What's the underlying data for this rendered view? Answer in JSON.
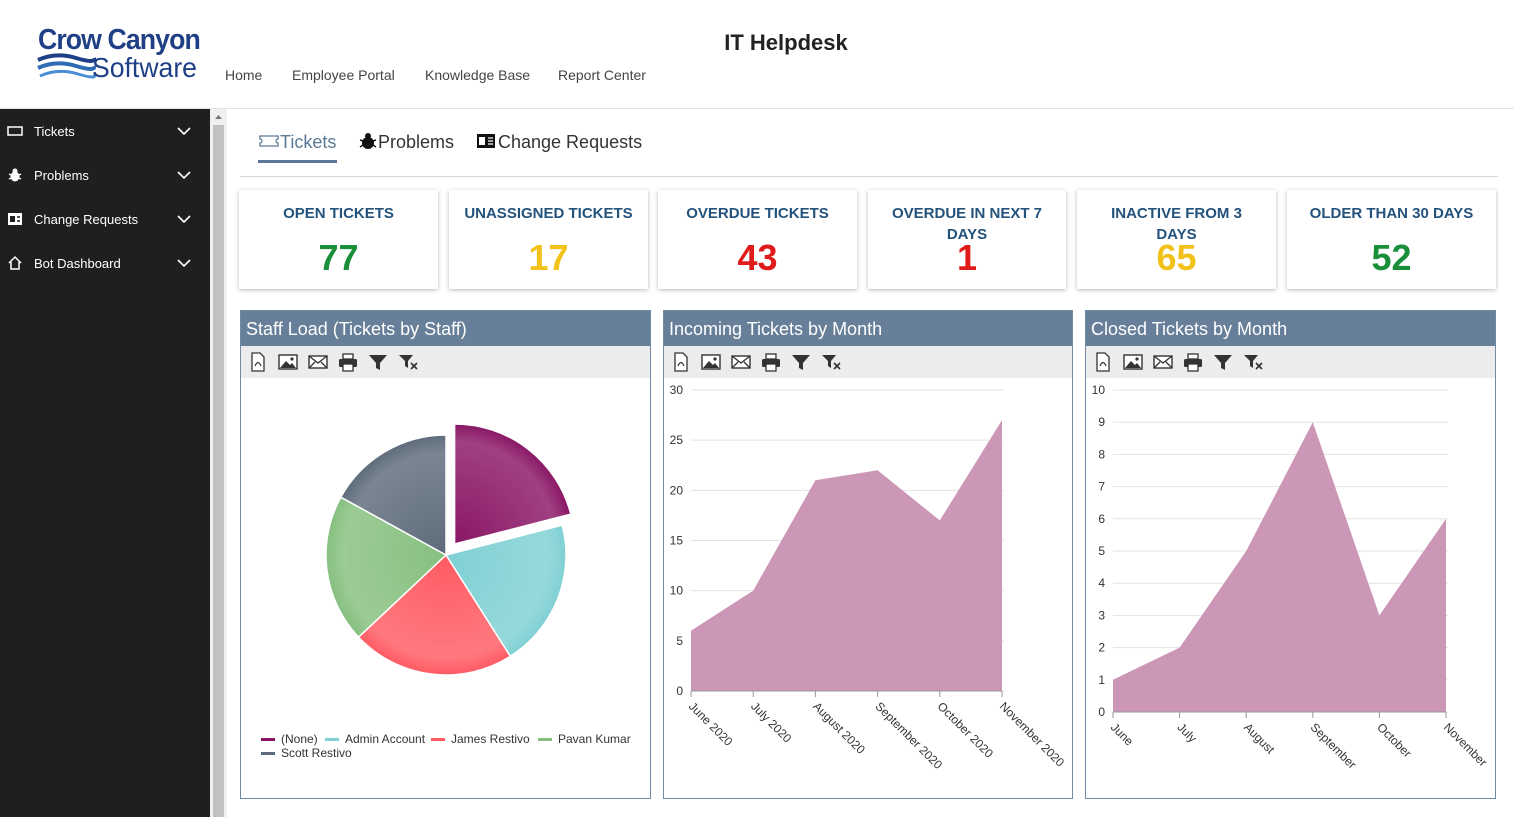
{
  "header": {
    "logo_line1": "Crow Canyon",
    "logo_line2": "Software",
    "site_title": "IT Helpdesk",
    "nav": [
      "Home",
      "Employee Portal",
      "Knowledge Base",
      "Report Center"
    ]
  },
  "sidebar": {
    "items": [
      {
        "label": "Tickets",
        "icon": "ticket-icon"
      },
      {
        "label": "Problems",
        "icon": "bug-icon"
      },
      {
        "label": "Change Requests",
        "icon": "exchange-icon"
      },
      {
        "label": "Bot Dashboard",
        "icon": "home-icon"
      }
    ]
  },
  "tabs": [
    {
      "label": "Tickets",
      "icon": "ticket-icon",
      "active": true
    },
    {
      "label": "Problems",
      "icon": "bug-icon",
      "active": false
    },
    {
      "label": "Change Requests",
      "icon": "exchange-icon",
      "active": false
    }
  ],
  "stats": [
    {
      "title": "OPEN TICKETS",
      "value": "77",
      "color": "#1a8f3a"
    },
    {
      "title": "UNASSIGNED TICKETS",
      "value": "17",
      "color": "#f2c21b"
    },
    {
      "title": "OVERDUE TICKETS",
      "value": "43",
      "color": "#e01b1b"
    },
    {
      "title": "OVERDUE IN NEXT 7 DAYS",
      "value": "1",
      "color": "#e01b1b"
    },
    {
      "title": "INACTIVE FROM 3 DAYS",
      "value": "65",
      "color": "#f2c21b"
    },
    {
      "title": "OLDER THAN 30 DAYS",
      "value": "52",
      "color": "#1a8f3a"
    }
  ],
  "toolbar_icons": [
    "pdf-icon",
    "image-icon",
    "email-icon",
    "print-icon",
    "filter-icon",
    "clear-filter-icon"
  ],
  "panels": {
    "staff": {
      "title": "Staff Load (Tickets by Staff)"
    },
    "incoming": {
      "title": "Incoming Tickets by Month"
    },
    "closed": {
      "title": "Closed Tickets by Month"
    }
  },
  "chart_data": [
    {
      "type": "pie",
      "title": "Staff Load (Tickets by Staff)",
      "categories": [
        "(None)",
        "Admin Account",
        "James Restivo",
        "Pavan Kumar",
        "Scott Restivo"
      ],
      "values": [
        21,
        20,
        22,
        20,
        17
      ],
      "colors": [
        "#8a1766",
        "#7fd0d3",
        "#ff5b63",
        "#86c07f",
        "#5d6b7a"
      ],
      "exploded": "(None)",
      "legend": "bottom"
    },
    {
      "type": "area",
      "title": "Incoming Tickets by Month",
      "categories": [
        "June 2020",
        "July 2020",
        "August 2020",
        "September 2020",
        "October 2020",
        "November 2020"
      ],
      "values": [
        6,
        10,
        21,
        22,
        17,
        27
      ],
      "ylim": [
        0,
        30
      ],
      "yticks": [
        0,
        5,
        10,
        15,
        20,
        25,
        30
      ],
      "grid": true,
      "color": "#cc97b7"
    },
    {
      "type": "area",
      "title": "Closed Tickets by Month",
      "categories": [
        "June",
        "July",
        "August",
        "September",
        "October",
        "November"
      ],
      "values": [
        1,
        2,
        5,
        9,
        3,
        6
      ],
      "ylim": [
        0,
        10
      ],
      "yticks": [
        0,
        1,
        2,
        3,
        4,
        5,
        6,
        7,
        8,
        9,
        10
      ],
      "grid": true,
      "color": "#cc97b7"
    }
  ]
}
